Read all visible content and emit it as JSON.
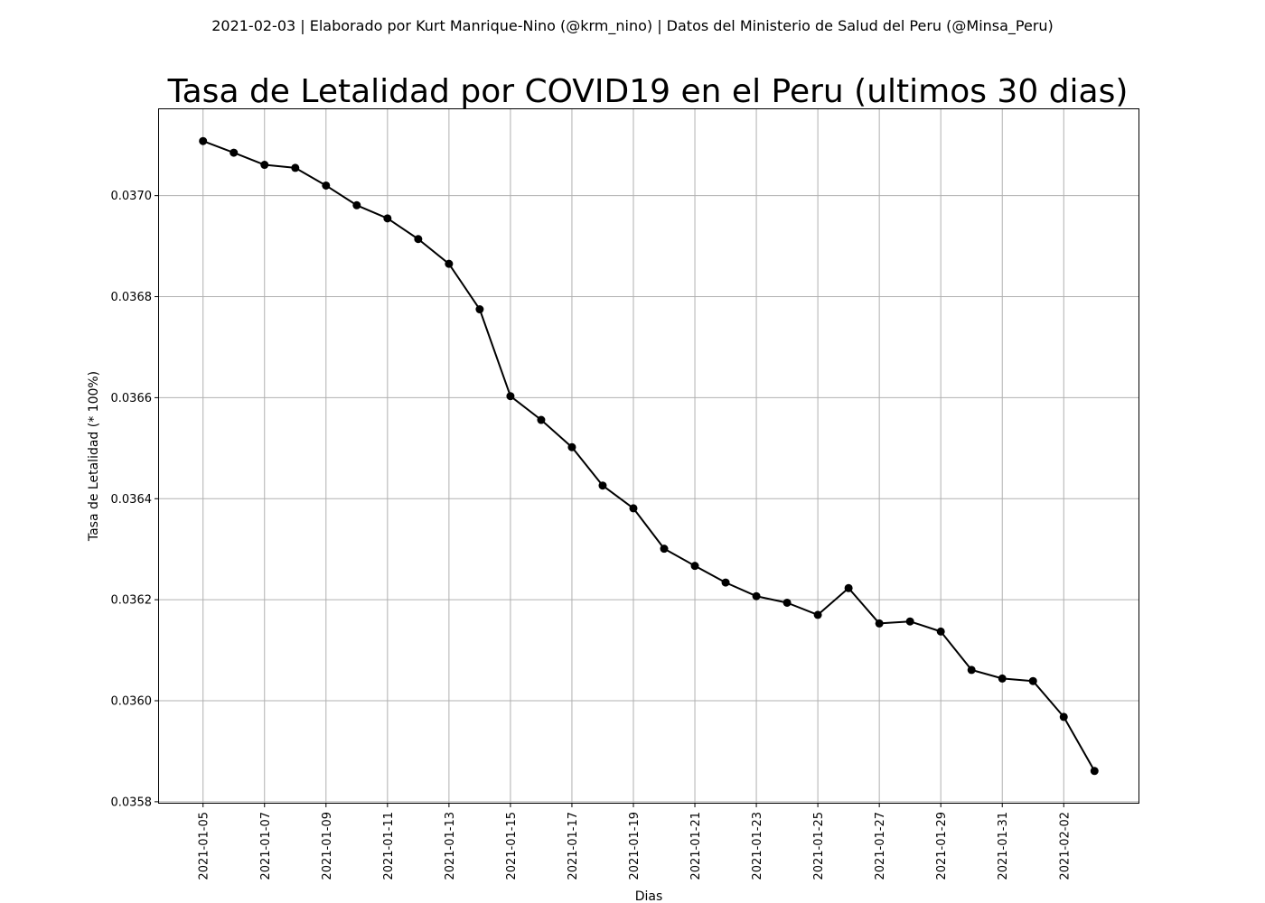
{
  "header_text": "2021-02-03 | Elaborado por Kurt Manrique-Nino (@krm_nino) | Datos del Ministerio de Salud del Peru (@Minsa_Peru)",
  "chart_data": {
    "type": "line",
    "title": "Tasa de Letalidad por COVID19 en el Peru (ultimos 30 dias)",
    "xlabel": "Dias",
    "ylabel": "Tasa de Letalidad (* 100%)",
    "x": [
      "2021-01-05",
      "2021-01-06",
      "2021-01-07",
      "2021-01-08",
      "2021-01-09",
      "2021-01-10",
      "2021-01-11",
      "2021-01-12",
      "2021-01-13",
      "2021-01-14",
      "2021-01-15",
      "2021-01-16",
      "2021-01-17",
      "2021-01-18",
      "2021-01-19",
      "2021-01-20",
      "2021-01-21",
      "2021-01-22",
      "2021-01-23",
      "2021-01-24",
      "2021-01-25",
      "2021-01-26",
      "2021-01-27",
      "2021-01-28",
      "2021-01-29",
      "2021-01-30",
      "2021-01-31",
      "2021-02-01",
      "2021-02-02",
      "2021-02-03"
    ],
    "series": [
      {
        "values": [
          0.037108,
          0.037085,
          0.037061,
          0.037055,
          0.03702,
          0.036981,
          0.036955,
          0.036914,
          0.036865,
          0.036775,
          0.036603,
          0.036556,
          0.036502,
          0.036426,
          0.036381,
          0.036301,
          0.036267,
          0.036234,
          0.036207,
          0.036194,
          0.03617,
          0.036223,
          0.036153,
          0.036157,
          0.036137,
          0.036061,
          0.036044,
          0.036039,
          0.035968,
          0.035861
        ],
        "color": "#000000",
        "marker": "circle"
      }
    ],
    "xticks": [
      "2021-01-05",
      "2021-01-07",
      "2021-01-09",
      "2021-01-11",
      "2021-01-13",
      "2021-01-15",
      "2021-01-17",
      "2021-01-19",
      "2021-01-21",
      "2021-01-23",
      "2021-01-25",
      "2021-01-27",
      "2021-01-29",
      "2021-01-31",
      "2021-02-02"
    ],
    "yticks": [
      "0.0358",
      "0.0360",
      "0.0362",
      "0.0364",
      "0.0366",
      "0.0368",
      "0.0370"
    ],
    "ylim": [
      0.035798,
      0.037171
    ],
    "xlim": [
      "2021-01-03T13:38",
      "2021-02-04T10:22"
    ],
    "grid": true,
    "legend": "none"
  }
}
